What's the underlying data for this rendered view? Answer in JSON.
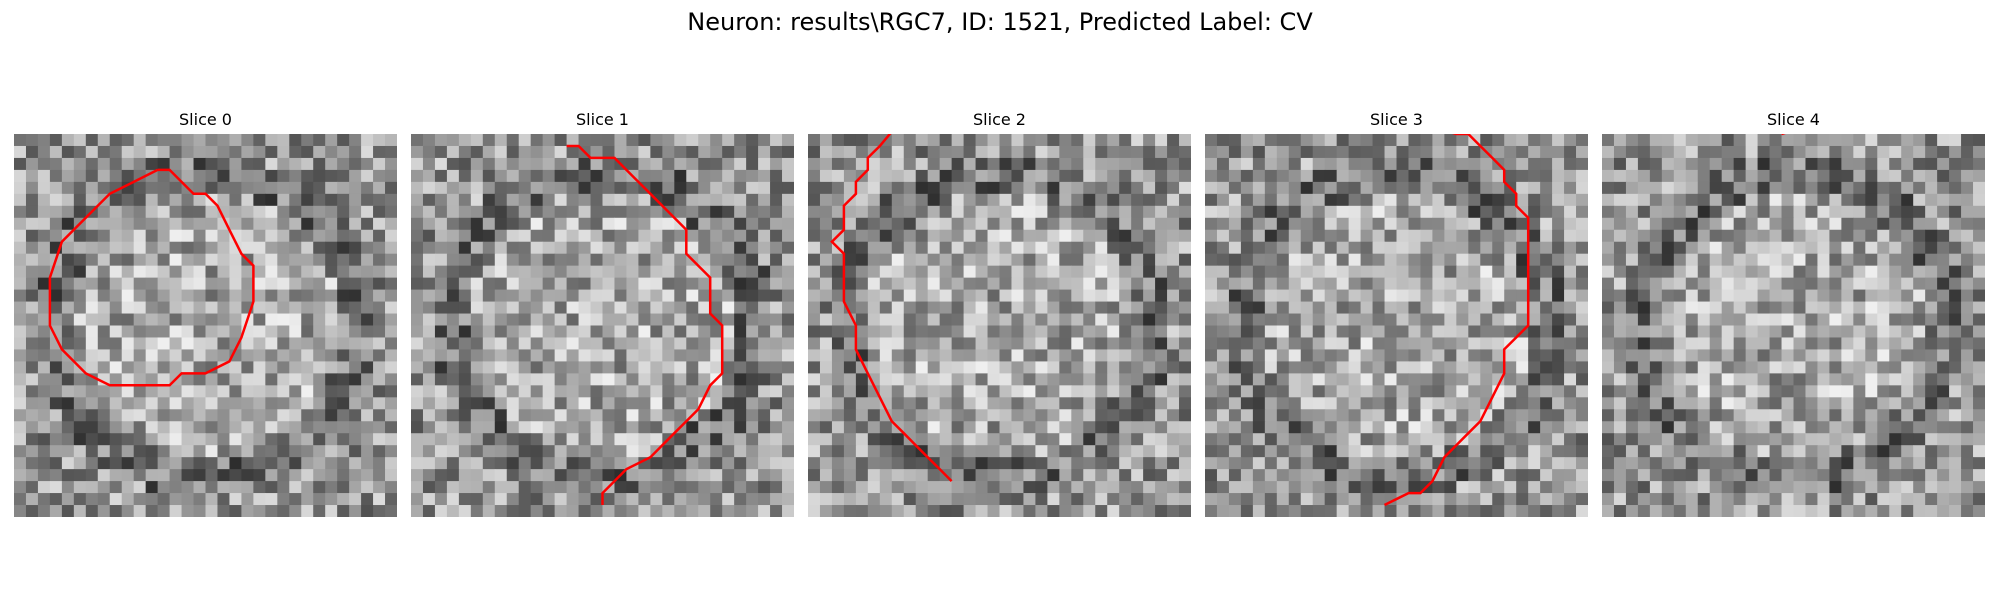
{
  "figure": {
    "title": "Neuron: results\\RGC7, ID: 1521, Predicted Label: CV",
    "contour_color": "#ff0000"
  },
  "panels": [
    {
      "title": "Slice 0",
      "seed": 11,
      "contour": [
        [
          12,
          3
        ],
        [
          13,
          3
        ],
        [
          14,
          4
        ],
        [
          15,
          5
        ],
        [
          16,
          5
        ],
        [
          17,
          6
        ],
        [
          18,
          8
        ],
        [
          19,
          10
        ],
        [
          20,
          11
        ],
        [
          20,
          14
        ],
        [
          19,
          17
        ],
        [
          18,
          19
        ],
        [
          16,
          20
        ],
        [
          14,
          20
        ],
        [
          13,
          21
        ],
        [
          9,
          21
        ],
        [
          8,
          21
        ],
        [
          6,
          20
        ],
        [
          4,
          18
        ],
        [
          3,
          16
        ],
        [
          3,
          12
        ],
        [
          4,
          9
        ],
        [
          6,
          7
        ],
        [
          8,
          5
        ],
        [
          10,
          4
        ],
        [
          12,
          3
        ]
      ]
    },
    {
      "title": "Slice 1",
      "seed": 23,
      "contour": [
        [
          13,
          1
        ],
        [
          14,
          1
        ],
        [
          15,
          2
        ],
        [
          17,
          2
        ],
        [
          18,
          3
        ],
        [
          19,
          4
        ],
        [
          20,
          5
        ],
        [
          21,
          6
        ],
        [
          22,
          7
        ],
        [
          23,
          8
        ],
        [
          23,
          10
        ],
        [
          24,
          11
        ],
        [
          25,
          12
        ],
        [
          25,
          15
        ],
        [
          26,
          16
        ],
        [
          26,
          19
        ],
        [
          26,
          20
        ],
        [
          25,
          21
        ],
        [
          24,
          23
        ],
        [
          23,
          24
        ],
        [
          22,
          25
        ],
        [
          21,
          26
        ],
        [
          20,
          27
        ],
        [
          18,
          28
        ],
        [
          17,
          29
        ],
        [
          16,
          30
        ],
        [
          16,
          31
        ]
      ]
    },
    {
      "title": "Slice 2",
      "seed": 37,
      "contour": [
        [
          7,
          -0.2
        ],
        [
          6,
          1
        ],
        [
          5,
          2
        ],
        [
          5,
          3
        ],
        [
          4,
          4
        ],
        [
          4,
          5
        ],
        [
          3,
          6
        ],
        [
          3,
          8
        ],
        [
          2,
          9
        ],
        [
          3,
          10
        ],
        [
          3,
          14
        ],
        [
          4,
          16
        ],
        [
          4,
          18
        ],
        [
          5,
          20
        ],
        [
          6,
          22
        ],
        [
          7,
          24
        ],
        [
          8,
          25
        ],
        [
          9,
          26
        ],
        [
          10,
          27
        ],
        [
          11,
          28
        ],
        [
          12,
          29
        ]
      ]
    },
    {
      "title": "Slice 3",
      "seed": 53,
      "contour": [
        [
          20,
          -0.3
        ],
        [
          21,
          0
        ],
        [
          22,
          0
        ],
        [
          23,
          1
        ],
        [
          24,
          2
        ],
        [
          25,
          3
        ],
        [
          25,
          4
        ],
        [
          26,
          5
        ],
        [
          26,
          6
        ],
        [
          27,
          7
        ],
        [
          27,
          10
        ],
        [
          27,
          16
        ],
        [
          26,
          17
        ],
        [
          25,
          18
        ],
        [
          25,
          20
        ],
        [
          24,
          22
        ],
        [
          23,
          24
        ],
        [
          22,
          25
        ],
        [
          21,
          26
        ],
        [
          20,
          27
        ],
        [
          19,
          29
        ],
        [
          18,
          30
        ],
        [
          17,
          30
        ],
        [
          15,
          31
        ]
      ]
    },
    {
      "title": "Slice 4",
      "seed": 71,
      "contour": [
        [
          15,
          0
        ],
        [
          16,
          -0.3
        ]
      ]
    }
  ]
}
